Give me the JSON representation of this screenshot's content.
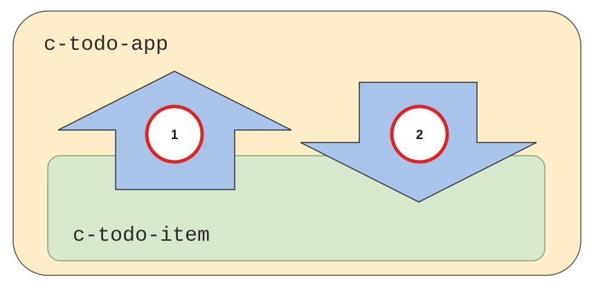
{
  "app": {
    "label": "c-todo-app",
    "fill": "#fdeec7",
    "stroke": "#555555"
  },
  "item": {
    "label": "c-todo-item",
    "fill": "#d8e8cc",
    "stroke": "#8aa07e"
  },
  "arrows": [
    {
      "direction": "up",
      "badge": "1",
      "fill": "#a8c4ea",
      "stroke": "#333333"
    },
    {
      "direction": "down",
      "badge": "2",
      "fill": "#a8c4ea",
      "stroke": "#333333"
    }
  ],
  "badge_style": {
    "fill": "#ffffff",
    "ring": "#e02424"
  }
}
